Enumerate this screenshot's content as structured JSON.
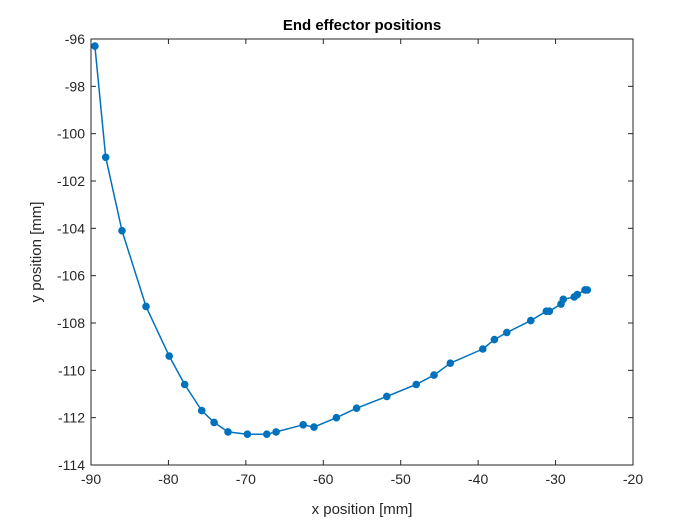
{
  "chart_data": {
    "type": "line",
    "title": "End effector positions",
    "xlabel": "x position [mm]",
    "ylabel": "y position [mm]",
    "xlim": [
      -90,
      -20
    ],
    "ylim": [
      -114,
      -96
    ],
    "xticks": [
      -90,
      -80,
      -70,
      -60,
      -50,
      -40,
      -30,
      -20
    ],
    "yticks": [
      -114,
      -112,
      -110,
      -108,
      -106,
      -104,
      -102,
      -100,
      -98,
      -96
    ],
    "grid": false,
    "legend": "none",
    "markers": true,
    "line_color": "#0072BD",
    "series": [
      {
        "x": [
          -89.5,
          -88.1,
          -86.0,
          -82.9,
          -79.9,
          -77.9,
          -75.7,
          -74.1,
          -72.3,
          -69.8,
          -67.3,
          -66.1,
          -62.6,
          -61.2,
          -58.3,
          -55.7,
          -51.8,
          -48.0,
          -45.7,
          -43.6,
          -39.4,
          -37.9,
          -36.3,
          -33.2,
          -31.2,
          -30.8,
          -29.3,
          -29.0,
          -27.6,
          -27.2,
          -26.2,
          -25.9
        ],
        "y": [
          -96.3,
          -101.0,
          -104.1,
          -107.3,
          -109.4,
          -110.6,
          -111.7,
          -112.2,
          -112.6,
          -112.7,
          -112.7,
          -112.6,
          -112.3,
          -112.4,
          -112.0,
          -111.6,
          -111.1,
          -110.6,
          -110.2,
          -109.7,
          -109.1,
          -108.7,
          -108.4,
          -107.9,
          -107.5,
          -107.5,
          -107.2,
          -107.0,
          -106.9,
          -106.8,
          -106.6,
          -106.6
        ]
      }
    ]
  }
}
